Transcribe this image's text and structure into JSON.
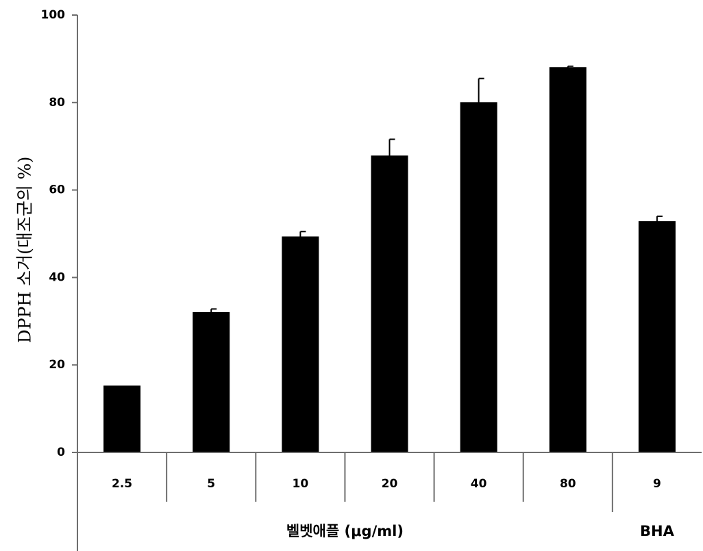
{
  "chart_data": {
    "type": "bar",
    "ylabel": "DPPH 소거(대조군의 %)",
    "ylim": [
      0,
      100
    ],
    "yticks": [
      0,
      20,
      40,
      60,
      80,
      100
    ],
    "categories": [
      "2.5",
      "5",
      "10",
      "20",
      "40",
      "80",
      "9"
    ],
    "values": [
      15.2,
      32.0,
      49.3,
      67.8,
      80.0,
      88.0,
      52.8
    ],
    "errors": [
      0,
      0.8,
      1.2,
      3.8,
      5.5,
      0.3,
      1.2
    ],
    "groups": [
      {
        "label": "벨벳애플 (μg/ml)",
        "categories": [
          "2.5",
          "5",
          "10",
          "20",
          "40",
          "80"
        ]
      },
      {
        "label": "BHA",
        "categories": [
          "9"
        ]
      }
    ],
    "bar_color": "#000000",
    "grid": false,
    "legend": "none"
  }
}
